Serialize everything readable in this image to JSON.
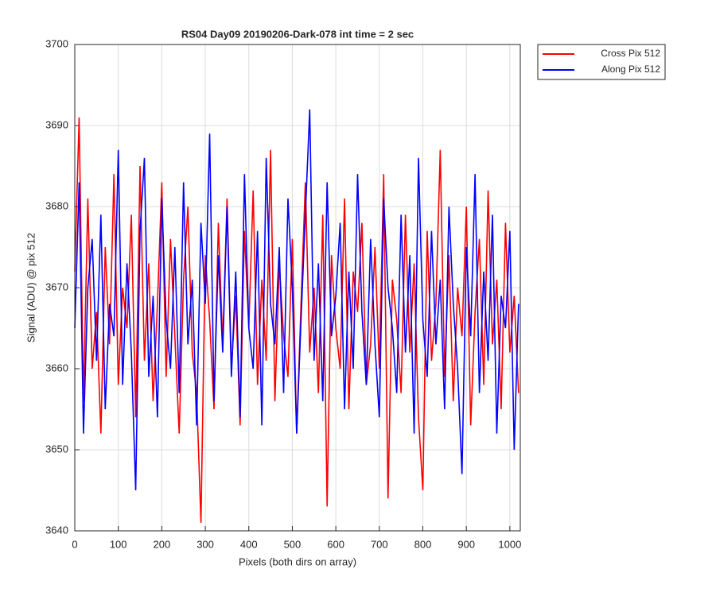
{
  "chart_data": {
    "type": "line",
    "title": "RS04 Day09 20190206-Dark-078 int time = 2 sec",
    "x_label": "Pixels (both dirs on array)",
    "y_label": "Signal (ADU) @ pix 512",
    "x": [
      0,
      10,
      20,
      30,
      40,
      50,
      60,
      70,
      80,
      90,
      100,
      110,
      120,
      130,
      140,
      150,
      160,
      170,
      180,
      190,
      200,
      210,
      220,
      230,
      240,
      250,
      260,
      270,
      280,
      290,
      300,
      310,
      320,
      330,
      340,
      350,
      360,
      370,
      380,
      390,
      400,
      410,
      420,
      430,
      440,
      450,
      460,
      470,
      480,
      490,
      500,
      510,
      520,
      530,
      540,
      550,
      560,
      570,
      580,
      590,
      600,
      610,
      620,
      630,
      640,
      650,
      660,
      670,
      680,
      690,
      700,
      710,
      720,
      730,
      740,
      750,
      760,
      770,
      780,
      790,
      800,
      810,
      820,
      830,
      840,
      850,
      860,
      870,
      880,
      890,
      900,
      910,
      920,
      930,
      940,
      950,
      960,
      970,
      980,
      990,
      1000,
      1010,
      1020
    ],
    "series": [
      {
        "name": "Cross Pix 512",
        "color": "#ff0000",
        "values": [
          3672,
          3691,
          3656,
          3681,
          3660,
          3667,
          3652,
          3675,
          3663,
          3684,
          3658,
          3670,
          3665,
          3679,
          3654,
          3685,
          3661,
          3673,
          3656,
          3668,
          3683,
          3659,
          3676,
          3664,
          3652,
          3671,
          3680,
          3662,
          3657,
          3641,
          3674,
          3666,
          3655,
          3678,
          3663,
          3681,
          3660,
          3669,
          3653,
          3677,
          3665,
          3682,
          3658,
          3671,
          3661,
          3687,
          3656,
          3673,
          3664,
          3659,
          3676,
          3652,
          3668,
          3683,
          3662,
          3670,
          3657,
          3679,
          3643,
          3674,
          3665,
          3660,
          3681,
          3655,
          3672,
          3667,
          3678,
          3658,
          3663,
          3675,
          3660,
          3684,
          3644,
          3671,
          3666,
          3657,
          3679,
          3662,
          3673,
          3654,
          3645,
          3677,
          3661,
          3668,
          3687,
          3659,
          3674,
          3656,
          3670,
          3664,
          3680,
          3653,
          3667,
          3676,
          3658,
          3682,
          3663,
          3671,
          3655,
          3678,
          3662,
          3669,
          3657
        ]
      },
      {
        "name": "Along Pix 512",
        "color": "#0000ff",
        "values": [
          3665,
          3683,
          3652,
          3670,
          3676,
          3661,
          3679,
          3655,
          3668,
          3664,
          3687,
          3658,
          3673,
          3662,
          3645,
          3677,
          3686,
          3659,
          3669,
          3654,
          3681,
          3666,
          3660,
          3675,
          3657,
          3683,
          3663,
          3671,
          3653,
          3678,
          3668,
          3689,
          3656,
          3674,
          3662,
          3680,
          3659,
          3672,
          3654,
          3684,
          3665,
          3660,
          3677,
          3653,
          3686,
          3668,
          3663,
          3675,
          3657,
          3681,
          3670,
          3652,
          3666,
          3679,
          3692,
          3661,
          3673,
          3656,
          3683,
          3664,
          3669,
          3678,
          3655,
          3672,
          3660,
          3684,
          3667,
          3658,
          3676,
          3663,
          3654,
          3681,
          3670,
          3665,
          3657,
          3679,
          3662,
          3674,
          3652,
          3686,
          3666,
          3659,
          3677,
          3663,
          3671,
          3655,
          3680,
          3668,
          3660,
          3647,
          3675,
          3664,
          3684,
          3657,
          3672,
          3661,
          3679,
          3652,
          3669,
          3665,
          3677,
          3650,
          3668
        ]
      }
    ],
    "xlim": [
      0,
      1024
    ],
    "xticks": [
      0,
      100,
      200,
      300,
      400,
      500,
      600,
      700,
      800,
      900,
      1000
    ],
    "ylim": [
      3640,
      3700
    ],
    "yticks": [
      3640,
      3650,
      3660,
      3670,
      3680,
      3690,
      3700
    ],
    "grid": true,
    "legend": "outside-top-right"
  }
}
